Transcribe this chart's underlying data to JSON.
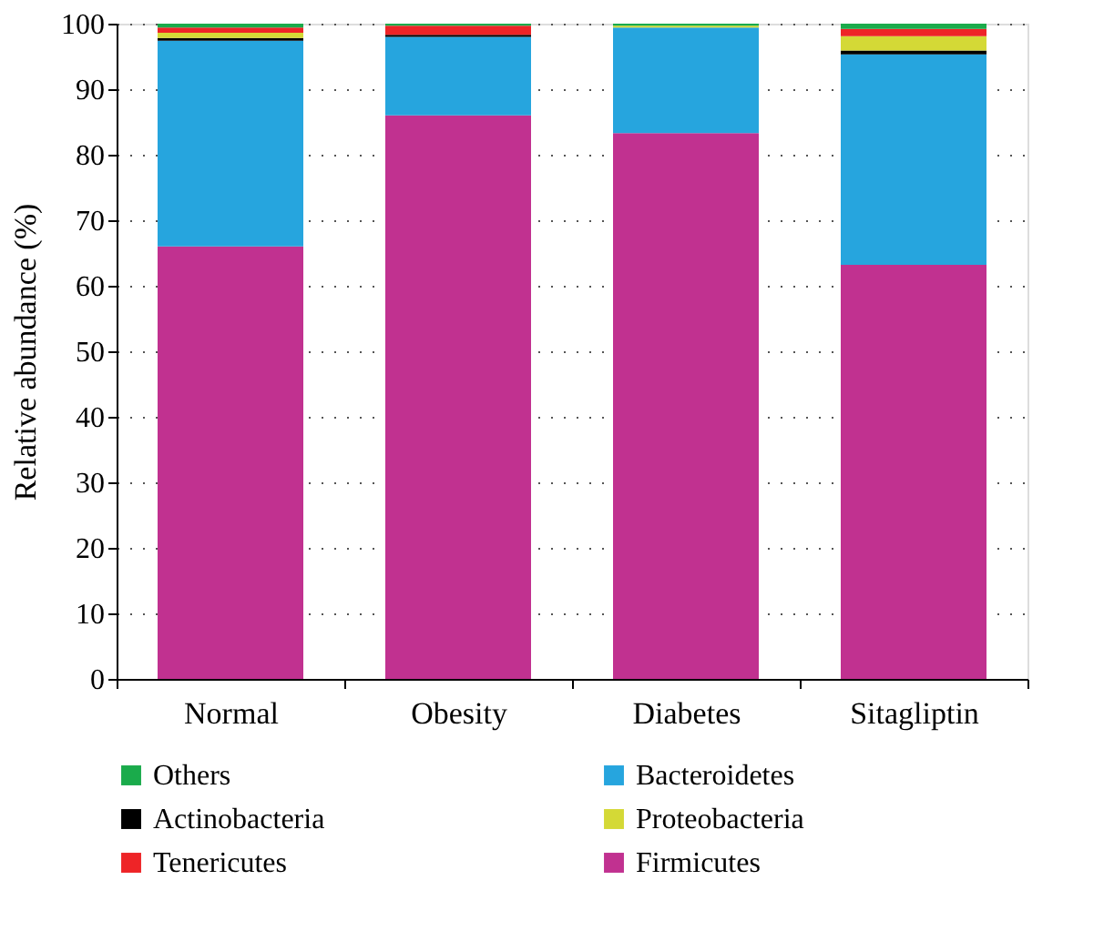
{
  "chart_data": {
    "type": "bar",
    "stacked": true,
    "ylabel": "Relative abundance (%)",
    "categories": [
      "Normal",
      "Obesity",
      "Diabetes",
      "Sitagliptin"
    ],
    "series": [
      {
        "name": "Firmicutes",
        "color": "#c13190",
        "values": [
          66,
          86,
          83.3,
          63.2
        ]
      },
      {
        "name": "Bacteroidetes",
        "color": "#26a5de",
        "values": [
          31.4,
          12.0,
          16.1,
          32.1
        ]
      },
      {
        "name": "Actinobacteria",
        "color": "#000000",
        "values": [
          0.4,
          0.3,
          0,
          0.6
        ]
      },
      {
        "name": "Proteobacteria",
        "color": "#d4d936",
        "values": [
          0.8,
          0,
          0.3,
          2.2
        ]
      },
      {
        "name": "Tenericutes",
        "color": "#ee2427",
        "values": [
          0.8,
          1.4,
          0,
          1.1
        ]
      },
      {
        "name": "Others",
        "color": "#1aab4b",
        "values": [
          0.6,
          0.3,
          0.3,
          0.8
        ]
      }
    ],
    "ylim": [
      0,
      100
    ],
    "yticks": [
      0,
      10,
      20,
      30,
      40,
      50,
      60,
      70,
      80,
      90,
      100
    ],
    "grid": "y",
    "legend": "bottom"
  }
}
